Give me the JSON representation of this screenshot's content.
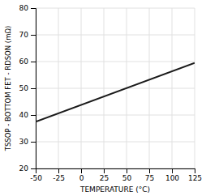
{
  "chart_data": {
    "type": "line",
    "xlabel": "TEMPERATURE (°C)",
    "ylabel": "TSSOP - BOTTOM FET - RDSON (mΩ)",
    "x": [
      -50,
      125
    ],
    "values": [
      37.5,
      59.5
    ],
    "color": "#1a1a1a",
    "xlim": [
      -50,
      125
    ],
    "ylim": [
      20,
      80
    ],
    "xticks": [
      -50,
      -25,
      0,
      25,
      50,
      75,
      100,
      125
    ],
    "yticks": [
      20,
      30,
      40,
      50,
      60,
      70,
      80
    ],
    "grid": true
  }
}
